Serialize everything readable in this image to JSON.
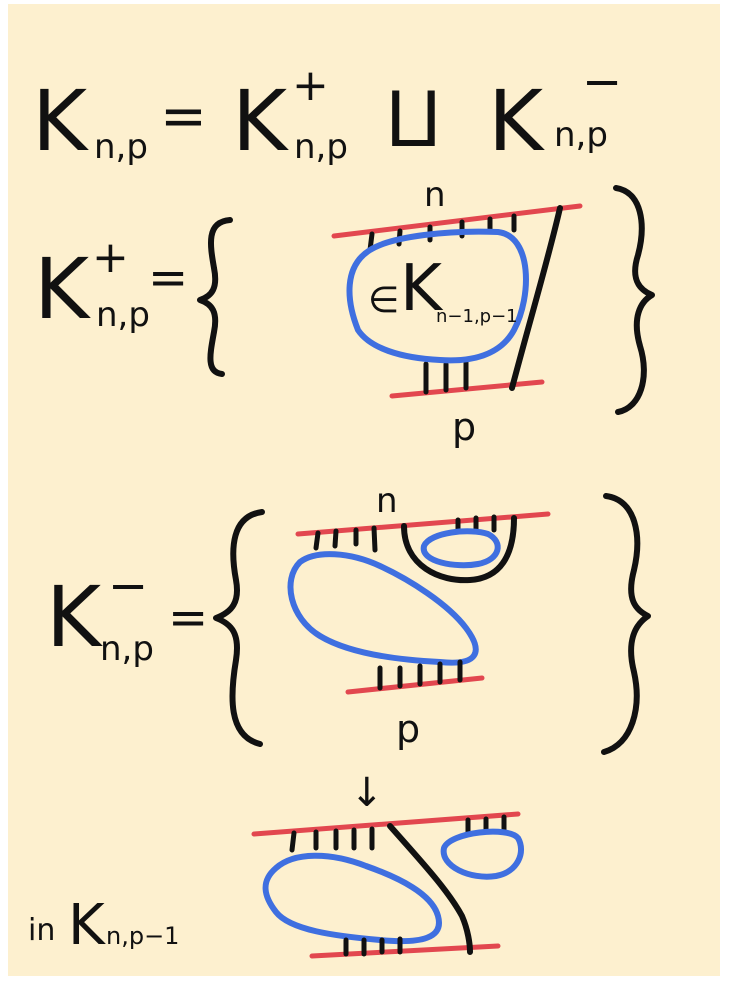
{
  "colors": {
    "paper": "#fdf0cf",
    "ink": "#111111",
    "boundary_red": "#e2474f",
    "component_blue": "#3f6fe0"
  },
  "equation": {
    "lhs": "K",
    "lhs_sub": "n,p",
    "equals": "=",
    "term1": "K",
    "term1_sub": "n,p",
    "term1_sup": "+",
    "union": "⨿",
    "term2": "K",
    "term2_sub": "n,p",
    "term2_sup": "−"
  },
  "plus_set": {
    "lhs": "K",
    "lhs_sub": "n,p",
    "lhs_sup": "+",
    "equals": "=",
    "top_label": "n",
    "bottom_label": "p",
    "member_symbol": "∈",
    "inner": "K",
    "inner_sub": "n−1,p−1"
  },
  "minus_set": {
    "lhs": "K",
    "lhs_sub": "n,p",
    "lhs_sup": "−",
    "equals": "=",
    "top_label": "n",
    "bottom_label": "p",
    "arrow": "↓"
  },
  "result": {
    "prefix": "in",
    "set": "K",
    "set_sub": "n,p−1"
  }
}
